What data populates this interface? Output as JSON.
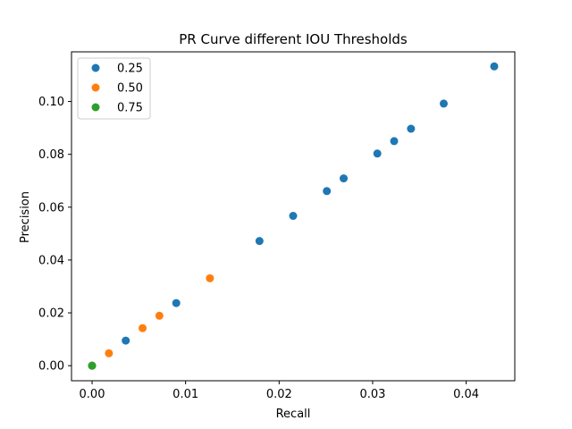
{
  "chart_data": {
    "type": "scatter",
    "title": "PR Curve different IOU Thresholds",
    "xlabel": "Recall",
    "ylabel": "Precision",
    "xlim": [
      -0.0022,
      0.0452
    ],
    "ylim": [
      -0.0057,
      0.1188
    ],
    "xticks": [
      0.0,
      0.01,
      0.02,
      0.03,
      0.04
    ],
    "xtick_labels": [
      "0.00",
      "0.01",
      "0.02",
      "0.03",
      "0.04"
    ],
    "yticks": [
      0.0,
      0.02,
      0.04,
      0.06,
      0.08,
      0.1
    ],
    "ytick_labels": [
      "0.00",
      "0.02",
      "0.04",
      "0.06",
      "0.08",
      "0.10"
    ],
    "grid": false,
    "legend_position": "top-left",
    "series": [
      {
        "name": "0.25",
        "color": "#1f77b4",
        "x": [
          0.0,
          0.0036,
          0.009,
          0.0179,
          0.0215,
          0.0251,
          0.0269,
          0.0305,
          0.0323,
          0.0341,
          0.0376,
          0.043
        ],
        "y": [
          0.0,
          0.0095,
          0.0237,
          0.0472,
          0.0567,
          0.0661,
          0.0709,
          0.0803,
          0.085,
          0.0897,
          0.0992,
          0.1133
        ]
      },
      {
        "name": "0.50",
        "color": "#ff7f0e",
        "x": [
          0.0,
          0.0018,
          0.0054,
          0.0072,
          0.0126
        ],
        "y": [
          0.0,
          0.0047,
          0.0142,
          0.0189,
          0.0331
        ]
      },
      {
        "name": "0.75",
        "color": "#2ca02c",
        "x": [
          0.0
        ],
        "y": [
          0.0
        ]
      }
    ]
  }
}
